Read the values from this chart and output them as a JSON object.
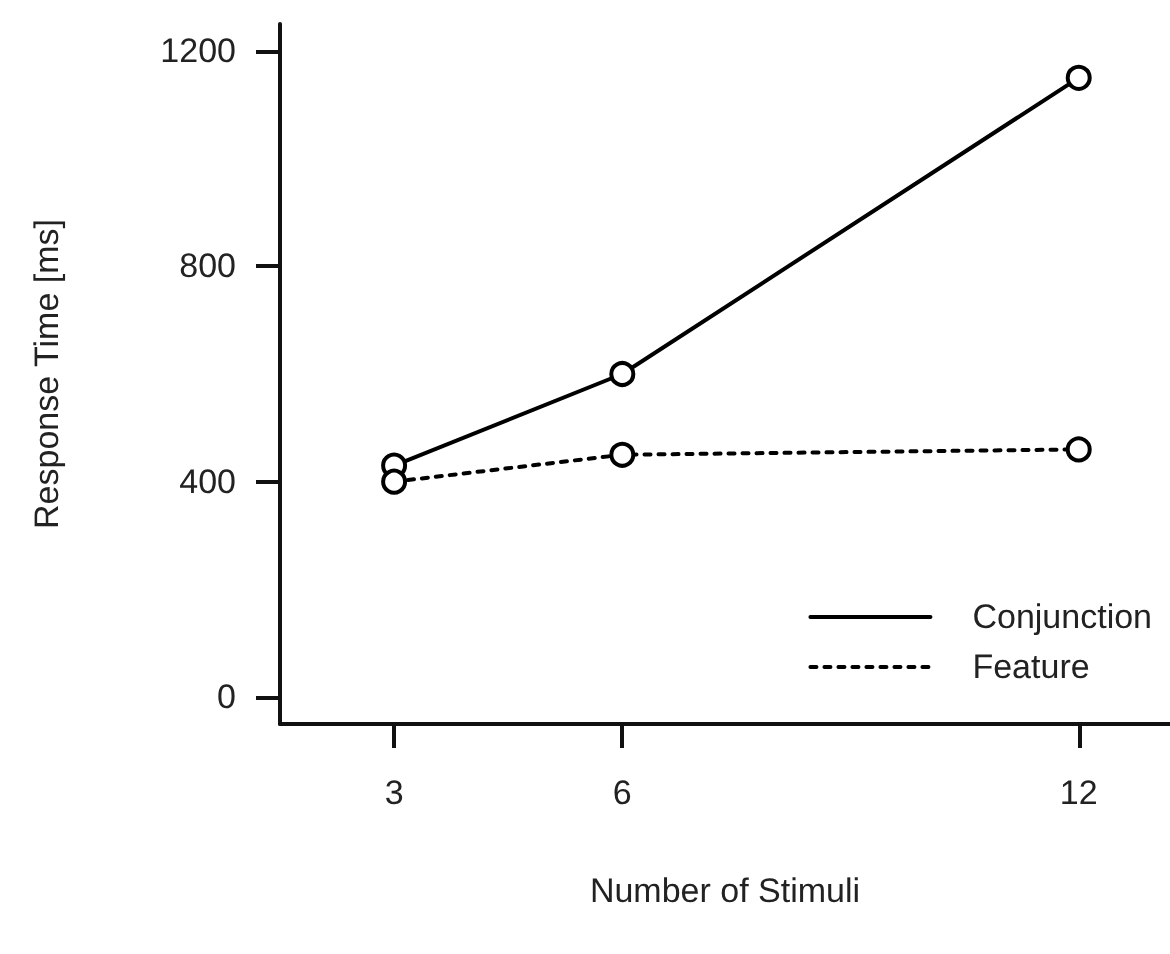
{
  "chart_data": {
    "type": "line",
    "xlabel": "Number of Stimuli",
    "ylabel": "Response Time [ms]",
    "x": [
      3,
      6,
      12
    ],
    "series": [
      {
        "name": "Conjunction",
        "color": "#000000",
        "values": [
          430,
          600,
          1150
        ],
        "line_style": "solid"
      },
      {
        "name": "Feature",
        "color": "#000000",
        "values": [
          400,
          450,
          460
        ],
        "line_style": "dotted"
      }
    ],
    "xlim": [
      1.5,
      13.2
    ],
    "xticks": [
      3,
      6,
      12
    ],
    "ylim": [
      -50,
      1250
    ],
    "yticks": [
      0,
      400,
      800,
      1200
    ],
    "marker": "circle",
    "legend": "bottom right",
    "grid": false
  }
}
